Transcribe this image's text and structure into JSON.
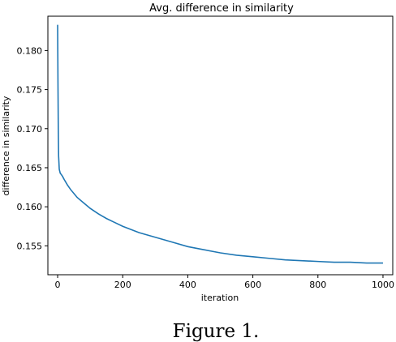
{
  "chart_data": {
    "type": "line",
    "title": "Avg. difference in similarity",
    "xlabel": "iteration",
    "ylabel": "difference in similarity",
    "xlim": [
      -30,
      1030
    ],
    "ylim": [
      0.1513,
      0.1844
    ],
    "xticks": [
      0,
      200,
      400,
      600,
      800,
      1000
    ],
    "xtick_labels": [
      "0",
      "200",
      "400",
      "600",
      "800",
      "1000"
    ],
    "yticks": [
      0.155,
      0.16,
      0.165,
      0.17,
      0.175,
      0.18
    ],
    "ytick_labels": [
      "0.155",
      "0.160",
      "0.165",
      "0.170",
      "0.175",
      "0.180"
    ],
    "grid": false,
    "series": [
      {
        "color": "#1f77b4",
        "x": [
          0,
          1,
          2,
          3,
          5,
          8,
          10,
          15,
          20,
          30,
          40,
          50,
          60,
          80,
          100,
          125,
          150,
          175,
          200,
          250,
          300,
          350,
          400,
          450,
          500,
          550,
          600,
          650,
          700,
          750,
          800,
          850,
          900,
          950,
          1000
        ],
        "y": [
          0.1833,
          0.176,
          0.17,
          0.1665,
          0.1648,
          0.1643,
          0.1642,
          0.1639,
          0.1635,
          0.1628,
          0.1622,
          0.1617,
          0.1612,
          0.1605,
          0.1598,
          0.1591,
          0.1585,
          0.158,
          0.1575,
          0.1567,
          0.1561,
          0.1555,
          0.1549,
          0.1545,
          0.1541,
          0.1538,
          0.1536,
          0.1534,
          0.1532,
          0.1531,
          0.153,
          0.1529,
          0.1529,
          0.1528,
          0.1528
        ]
      }
    ]
  },
  "caption": "Figure 1."
}
